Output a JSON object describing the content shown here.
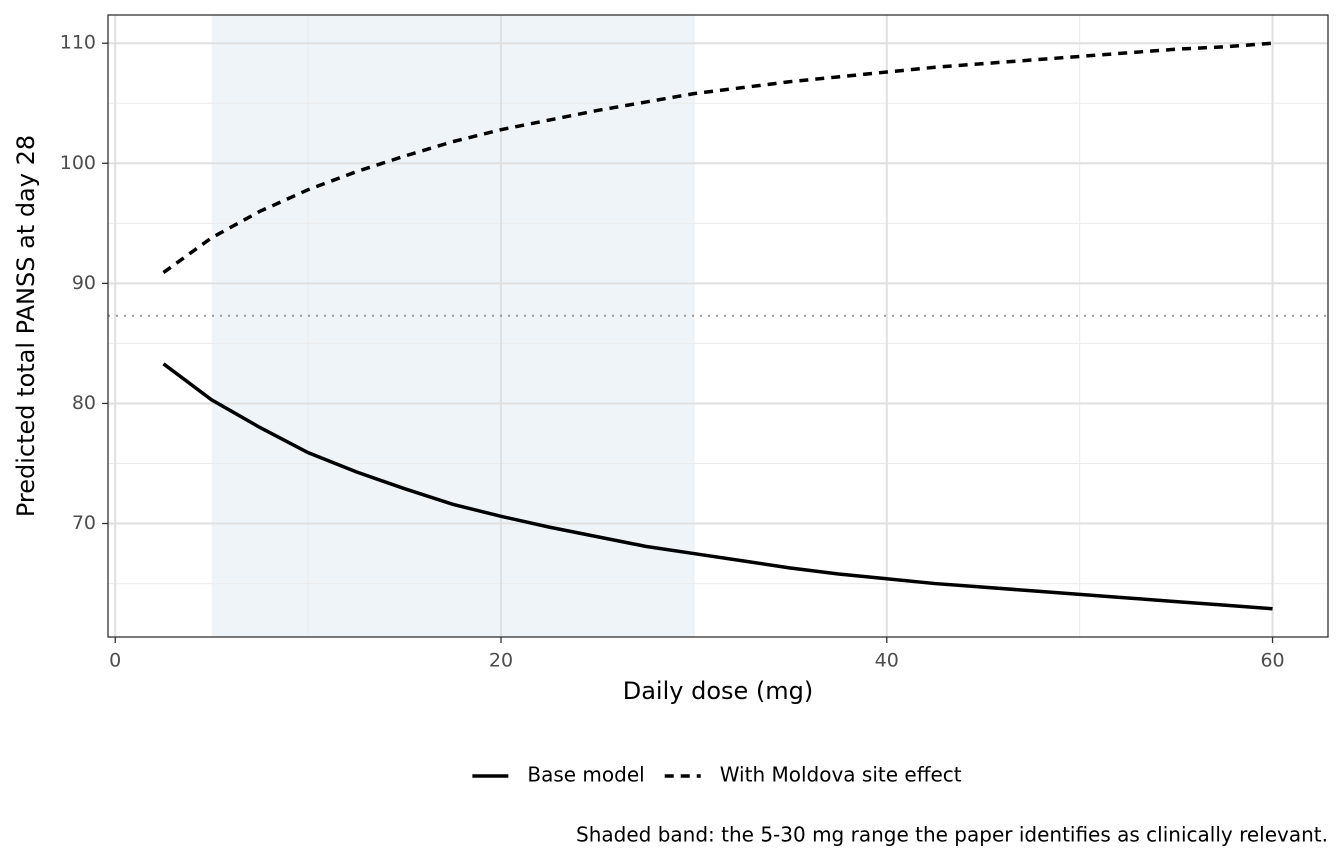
{
  "chart_data": {
    "type": "line",
    "x_label": "Daily dose (mg)",
    "y_label": "Predicted total PANSS at day 28",
    "caption": "Shaded band: the 5-30 mg range the paper identifies as clinically relevant.",
    "x": [
      2.5,
      5,
      7.5,
      10,
      12.5,
      15,
      17.5,
      20,
      22.5,
      25,
      27.5,
      30,
      32.5,
      35,
      37.5,
      40,
      42.5,
      45,
      47.5,
      50,
      52.5,
      55,
      57.5,
      60
    ],
    "series": [
      {
        "name": "Base model",
        "color": "#000000",
        "linetype": "solid",
        "values": [
          83.3,
          80.3,
          78.0,
          75.9,
          74.3,
          72.9,
          71.6,
          70.6,
          69.7,
          68.9,
          68.1,
          67.5,
          66.9,
          66.3,
          65.8,
          65.4,
          65.0,
          64.7,
          64.4,
          64.1,
          63.8,
          63.5,
          63.2,
          62.9
        ]
      },
      {
        "name": "With Moldova site effect",
        "color": "#000000",
        "linetype": "dashed",
        "values": [
          90.9,
          93.8,
          96.0,
          97.8,
          99.3,
          100.6,
          101.8,
          102.8,
          103.6,
          104.4,
          105.1,
          105.8,
          106.3,
          106.8,
          107.2,
          107.6,
          108.0,
          108.3,
          108.6,
          108.9,
          109.2,
          109.5,
          109.7,
          110.0
        ]
      }
    ],
    "band": [
      5,
      30
    ],
    "band_color": "#dce7f1",
    "reference_line": 87.3,
    "xlim": [
      -0.375,
      62.875
    ],
    "ylim": [
      60.55,
      112.35
    ],
    "xticks": [
      0,
      20,
      40,
      60
    ],
    "yticks": [
      70,
      80,
      90,
      100,
      110
    ],
    "xminor": [
      10,
      30,
      50
    ],
    "yminor": [
      65,
      75,
      85,
      95,
      105
    ],
    "grid": true,
    "legend_position": "bottom"
  }
}
